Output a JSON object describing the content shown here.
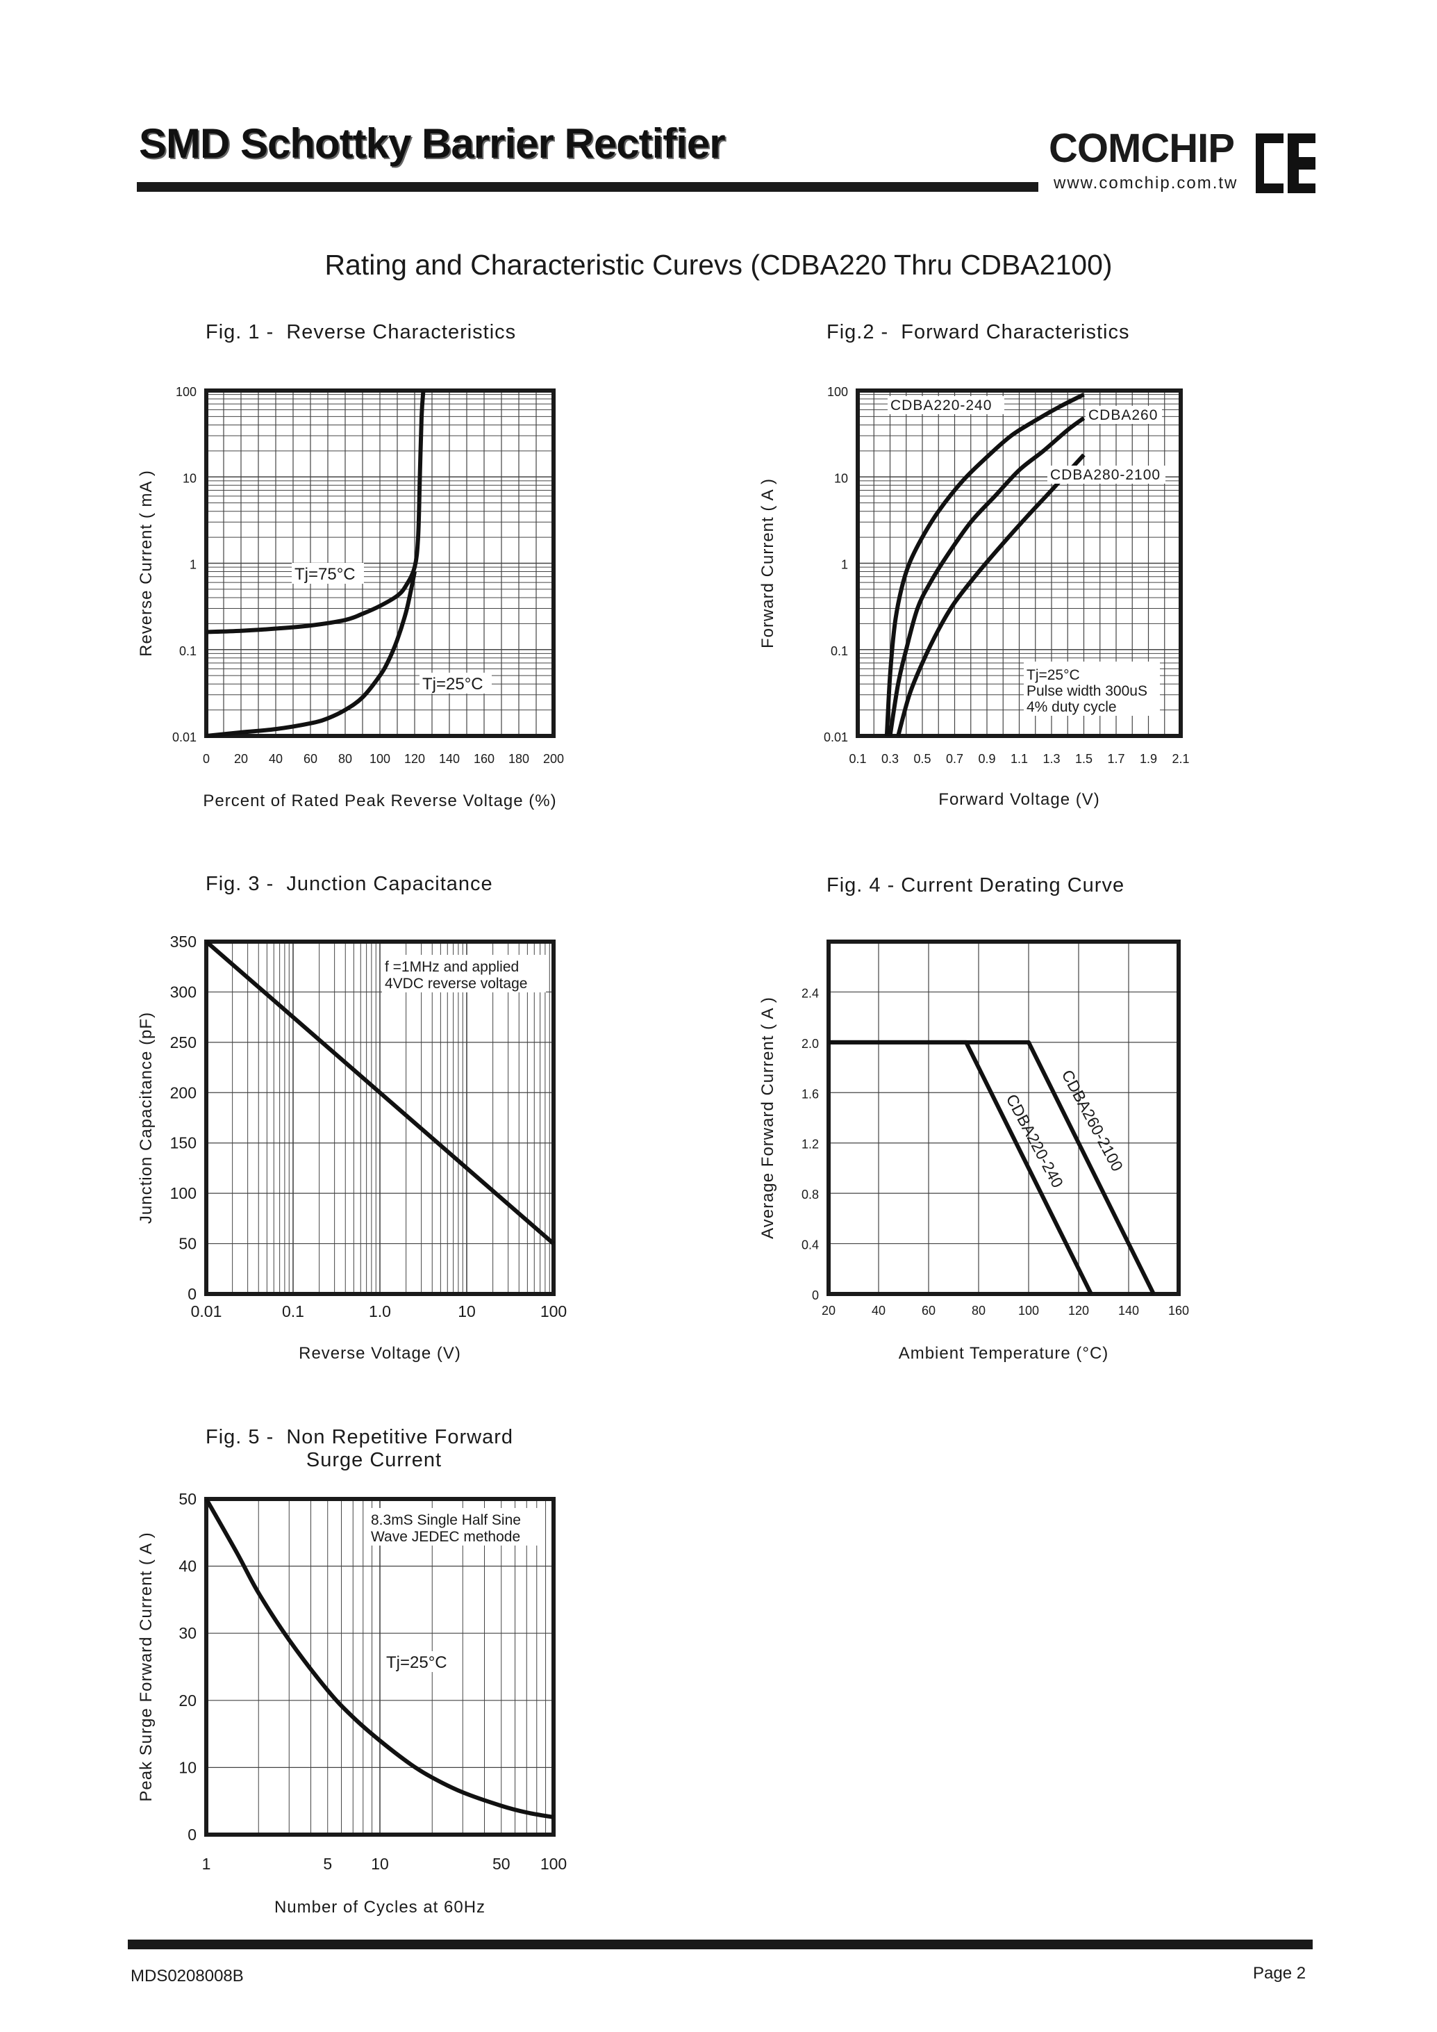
{
  "header": {
    "title": "SMD Schottky Barrier Rectifier",
    "logo_text": "COMCHIP",
    "logo_url": "www.comchip.com.tw",
    "logo_mark_icon": "ce-logo-icon"
  },
  "main_heading": "Rating and  Characteristic Curevs (CDBA220 Thru CDBA2100)",
  "footer": {
    "doc_code": "MDS0208008B",
    "page": "Page 2"
  },
  "chart_data": [
    {
      "id": "fig1",
      "type": "line",
      "title": "Fig. 1 -  Reverse Characteristics",
      "xlabel": "Percent of Rated Peak Reverse Voltage (%)",
      "ylabel": "Reverse Current ( mA )",
      "xlim": [
        0,
        200
      ],
      "ylim": [
        0.01,
        100
      ],
      "yscale": "log",
      "xticks": [
        "0",
        "20",
        "40",
        "60",
        "80",
        "100",
        "120",
        "140",
        "160",
        "180",
        "200"
      ],
      "yticks": [
        "0.01",
        "0.1",
        "1",
        "10",
        "100"
      ],
      "grid": true,
      "series": [
        {
          "name": "Tj=75°C",
          "x": [
            0,
            20,
            40,
            60,
            80,
            90,
            100,
            110,
            115,
            120,
            122,
            123,
            124,
            125
          ],
          "y": [
            0.16,
            0.165,
            0.175,
            0.19,
            0.22,
            0.26,
            0.32,
            0.42,
            0.55,
            0.9,
            2,
            10,
            50,
            100
          ]
        },
        {
          "name": "Tj=25°C",
          "x": [
            0,
            20,
            40,
            60,
            70,
            80,
            90,
            100,
            105,
            110,
            115,
            118,
            120
          ],
          "y": [
            0.01,
            0.011,
            0.012,
            0.014,
            0.016,
            0.02,
            0.028,
            0.05,
            0.075,
            0.13,
            0.27,
            0.5,
            0.8
          ]
        }
      ],
      "annotations": [
        "Tj=75°C",
        "Tj=25°C"
      ]
    },
    {
      "id": "fig2",
      "type": "line",
      "title": "Fig.2 -  Forward Characteristics",
      "xlabel": "Forward Voltage (V)",
      "ylabel": "Forward Current ( A )",
      "xlim": [
        0.1,
        2.1
      ],
      "ylim": [
        0.01,
        100
      ],
      "yscale": "log",
      "xticks": [
        "0.1",
        "0.3",
        "0.5",
        "0.7",
        "0.9",
        "1.1",
        "1.3",
        "1.5",
        "1.7",
        "1.9",
        "2.1"
      ],
      "yticks": [
        "0.01",
        "0.1",
        "1",
        "10",
        "100"
      ],
      "grid": true,
      "series": [
        {
          "name": "CDBA220-240",
          "x": [
            0.28,
            0.3,
            0.33,
            0.37,
            0.42,
            0.5,
            0.6,
            0.75,
            0.9,
            1.05,
            1.2,
            1.35,
            1.5
          ],
          "y": [
            0.01,
            0.05,
            0.2,
            0.5,
            1.0,
            2.0,
            4.0,
            9.0,
            17,
            30,
            45,
            65,
            90
          ]
        },
        {
          "name": "CDBA260",
          "x": [
            0.3,
            0.35,
            0.4,
            0.47,
            0.55,
            0.65,
            0.8,
            0.95,
            1.1,
            1.25,
            1.4,
            1.5
          ],
          "y": [
            0.01,
            0.04,
            0.1,
            0.3,
            0.6,
            1.2,
            3.0,
            6.0,
            12,
            20,
            35,
            48
          ]
        },
        {
          "name": "CDBA280-2100",
          "x": [
            0.35,
            0.42,
            0.5,
            0.6,
            0.7,
            0.85,
            1.0,
            1.15,
            1.3,
            1.5
          ],
          "y": [
            0.01,
            0.03,
            0.07,
            0.17,
            0.35,
            0.8,
            1.7,
            3.5,
            7.0,
            18
          ]
        }
      ],
      "annotations": [
        "Tj=25°C",
        "Pulse width 300uS",
        "4% duty cycle"
      ]
    },
    {
      "id": "fig3",
      "type": "line",
      "title": "Fig. 3 -  Junction Capacitance",
      "xlabel": "Reverse Voltage (V)",
      "ylabel": "Junction Capacitance  (pF)",
      "xlim": [
        0.01,
        100
      ],
      "xscale": "log",
      "ylim": [
        0,
        350
      ],
      "xticks": [
        "0.01",
        "0.1",
        "1.0",
        "10",
        "100"
      ],
      "yticks": [
        "0",
        "50",
        "100",
        "150",
        "200",
        "250",
        "300",
        "350"
      ],
      "grid": true,
      "series": [
        {
          "name": "",
          "x": [
            0.01,
            100
          ],
          "y": [
            350,
            50
          ]
        }
      ],
      "annotations": [
        "f =1MHz and applied",
        "4VDC reverse voltage"
      ]
    },
    {
      "id": "fig4",
      "type": "line",
      "title": "Fig. 4 - Current Derating Curve",
      "xlabel": "Ambient Temperature (°C)",
      "ylabel": "Average Forward Current ( A )",
      "xlim": [
        20,
        160
      ],
      "ylim": [
        0,
        2.8
      ],
      "xticks": [
        "20",
        "40",
        "60",
        "80",
        "100",
        "120",
        "140",
        "160"
      ],
      "yticks": [
        "0",
        "0.4",
        "0.8",
        "1.2",
        "1.6",
        "2.0",
        "2.4"
      ],
      "grid": true,
      "series": [
        {
          "name": "CDBA220-240",
          "x": [
            20,
            75,
            125
          ],
          "y": [
            2.0,
            2.0,
            0
          ]
        },
        {
          "name": "CDBA260-2100",
          "x": [
            20,
            100,
            150
          ],
          "y": [
            2.0,
            2.0,
            0
          ]
        }
      ]
    },
    {
      "id": "fig5",
      "type": "line",
      "title": "Fig. 5 -  Non Repetitive Forward\n                Surge Current",
      "xlabel": "Number of Cycles at 60Hz",
      "ylabel": "Peak Surge Forward Current ( A )",
      "xlim": [
        1,
        100
      ],
      "xscale": "log",
      "ylim": [
        0,
        50
      ],
      "xticks": [
        "1",
        "5",
        "10",
        "50",
        "100"
      ],
      "yticks": [
        "0",
        "10",
        "20",
        "30",
        "40",
        "50"
      ],
      "grid": true,
      "series": [
        {
          "name": "",
          "x": [
            1,
            1.5,
            2,
            3,
            5,
            7,
            10,
            15,
            20,
            30,
            50,
            70,
            100
          ],
          "y": [
            50,
            42,
            36,
            29,
            21.5,
            17.5,
            14,
            10.5,
            8.5,
            6.3,
            4.3,
            3.3,
            2.6
          ]
        }
      ],
      "annotations": [
        "8.3mS Single Half Sine",
        "Wave JEDEC methode",
        "Tj=25°C"
      ]
    }
  ]
}
